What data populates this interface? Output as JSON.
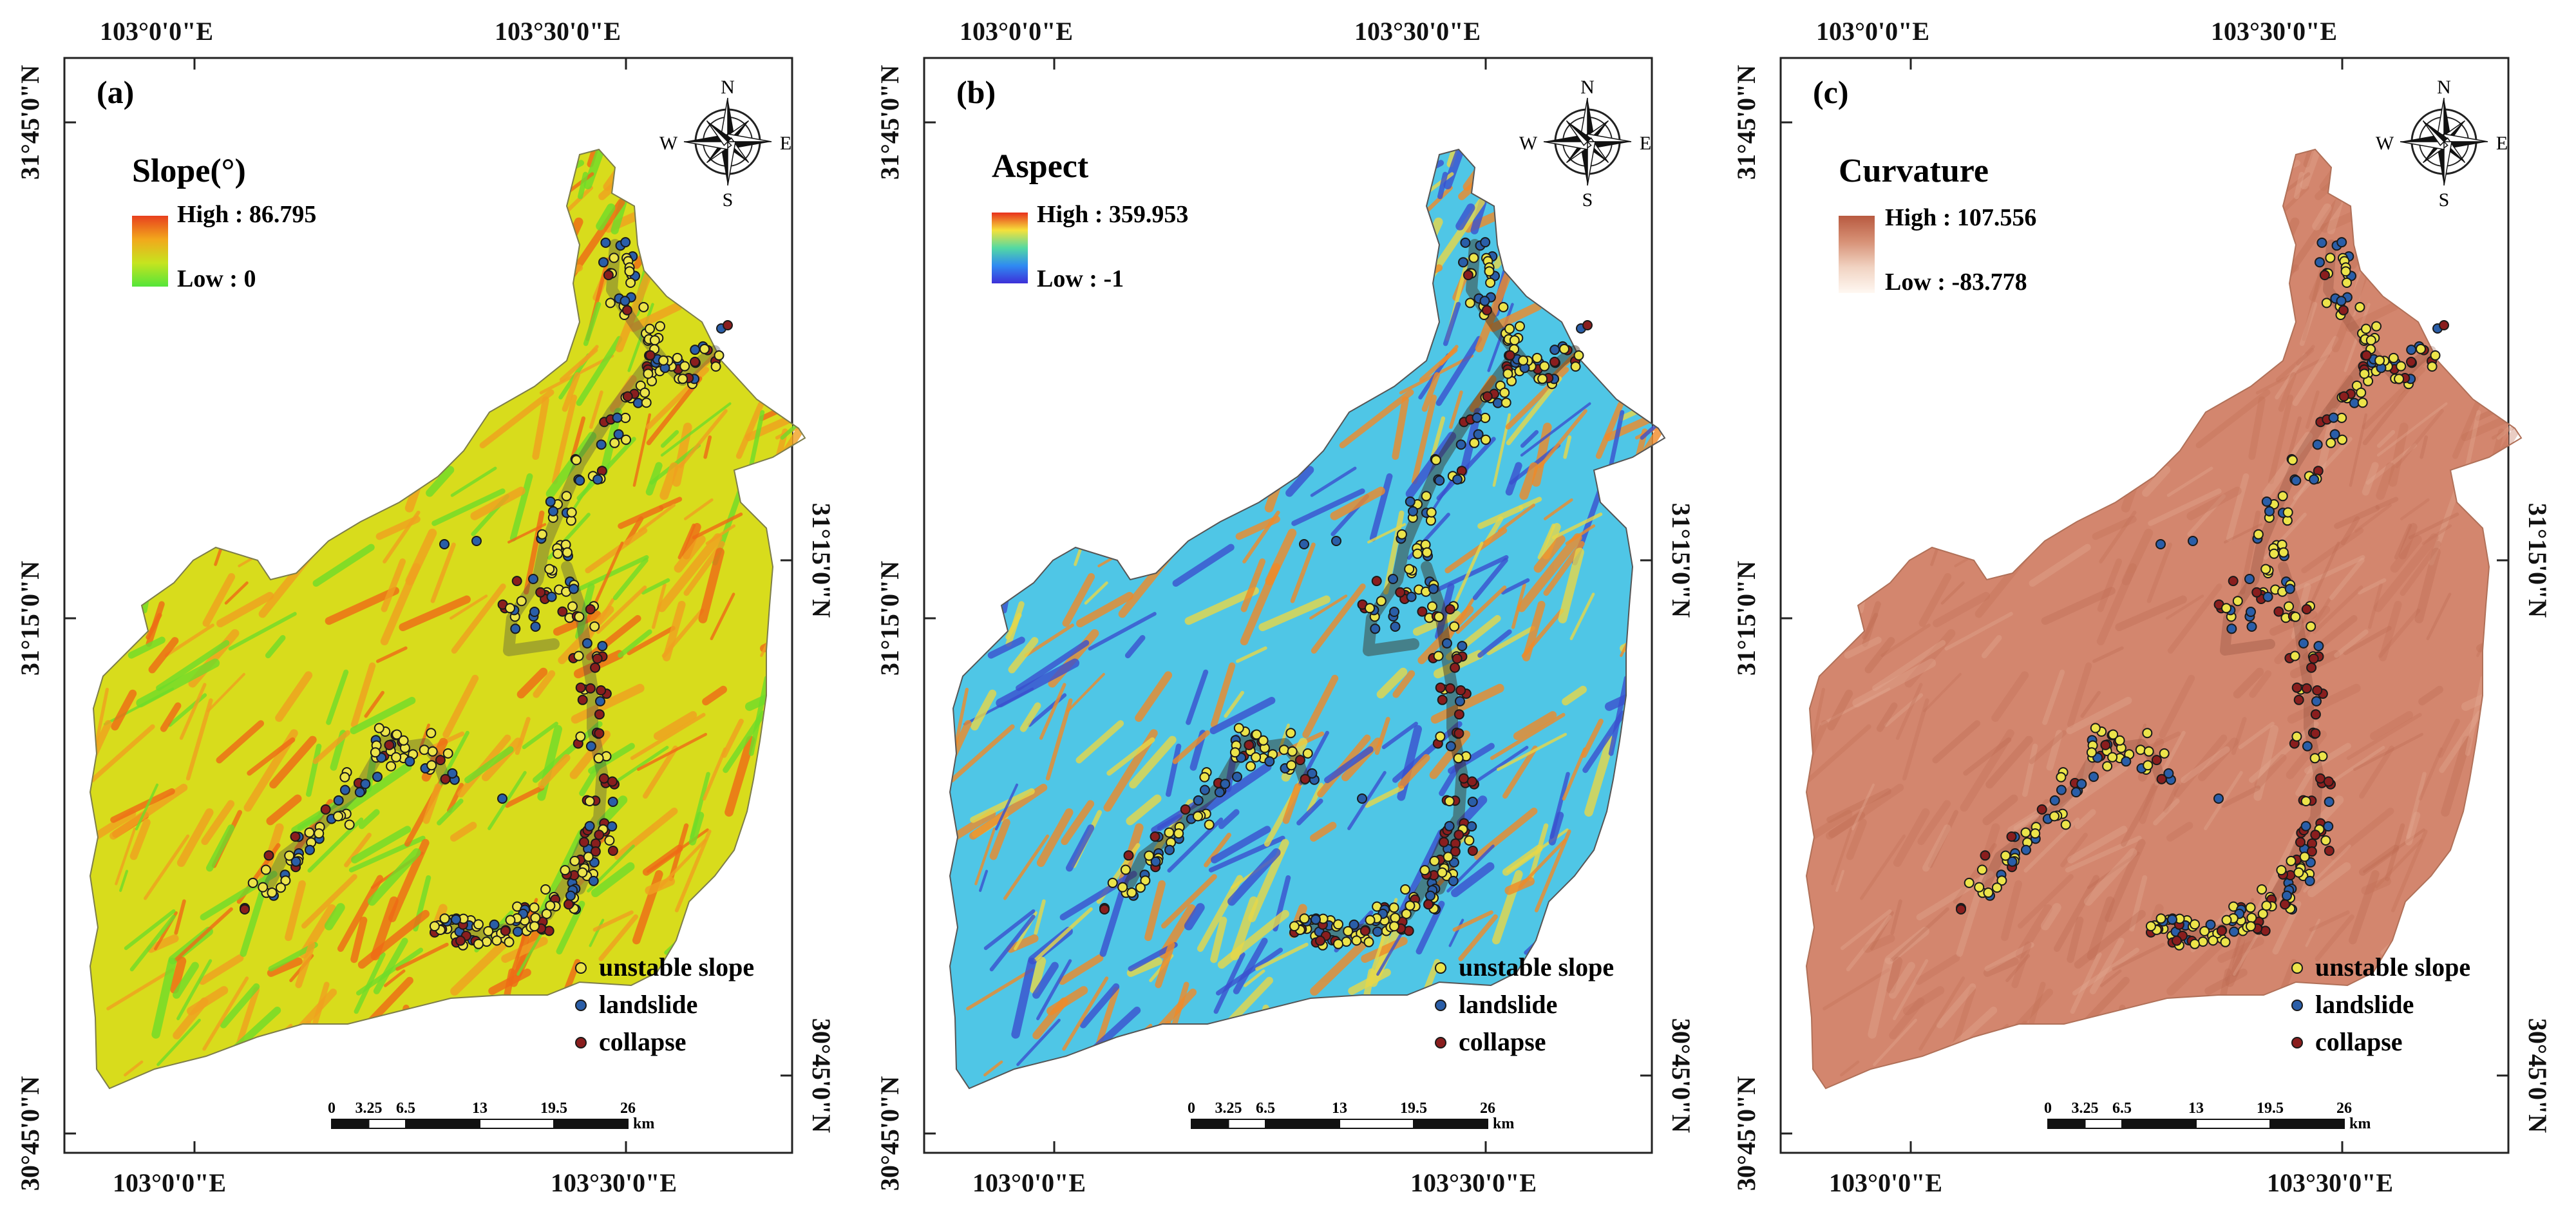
{
  "panels": [
    {
      "letter": "(a)",
      "title": "Slope(°)",
      "high": "High : 86.795",
      "low": "Low : 0",
      "colors": {
        "base": "#d8dc1c",
        "tex1": "#f0a020",
        "tex2": "#6fdc2a",
        "tex3": "#ef6a16",
        "grad": [
          "#e8401e",
          "#f2a81c",
          "#c6e41f",
          "#54e53a"
        ]
      }
    },
    {
      "letter": "(b)",
      "title": "Aspect",
      "high": "High : 359.953",
      "low": "Low : -1",
      "colors": {
        "base": "#4fc6e6",
        "tex1": "#f08a28",
        "tex2": "#3a50cf",
        "tex3": "#e8d848",
        "grad": [
          "#e8301c",
          "#f6e13a",
          "#53d9a3",
          "#2f8af2",
          "#3d2fd8"
        ]
      }
    },
    {
      "letter": "(c)",
      "title": "Curvature",
      "high": "High : 107.556",
      "low": "Low : -83.778",
      "colors": {
        "base": "#d3866e",
        "tex1": "#c47058",
        "tex2": "#e4ab94",
        "tex3": "#bd6a52",
        "grad": [
          "#b85a40",
          "#d79176",
          "#f1d3c2",
          "#fff8f2"
        ]
      }
    }
  ],
  "axes": {
    "lon_left": "103°0'0\"E",
    "lon_right": "103°30'0\"E",
    "lat_top": "31°45'0\"N",
    "lat_mid": "31°15'0\"N",
    "lat_bottom": "30°45'0\"N"
  },
  "compass": {
    "n": "N",
    "s": "S",
    "e": "E",
    "w": "W"
  },
  "legend_points": [
    {
      "label": "unstable slope",
      "color": "#ece44a"
    },
    {
      "label": "landslide",
      "color": "#2a5ea8"
    },
    {
      "label": "collapse",
      "color": "#8a1e1e"
    }
  ],
  "scale_bar": {
    "ticks": [
      "0",
      "3.25",
      "6.5",
      "13",
      "19.5",
      "26"
    ],
    "unit": "km"
  }
}
